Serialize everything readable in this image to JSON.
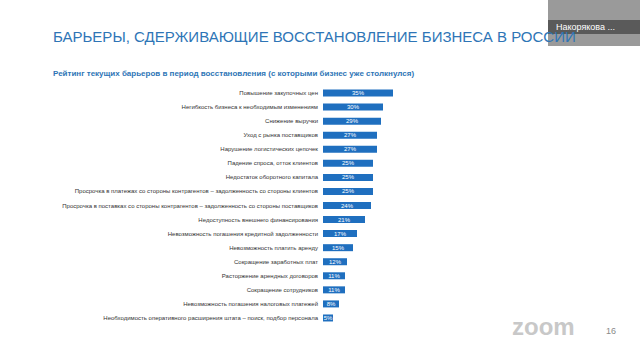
{
  "chart_data": {
    "type": "bar",
    "orientation": "horizontal",
    "title": "БАРЬЕРЫ, СДЕРЖИВАЮЩИЕ ВОССТАНОВЛЕНИЕ БИЗНЕСА В РОССИИ",
    "subtitle": "Рейтинг текущих барьеров в период восстановления (с которыми бизнес уже столкнулся)",
    "categories": [
      "Повышение закупочных цен",
      "Негибкость бизнеса к необходимым изменениям",
      "Снижение выручки",
      "Уход с рынка поставщиков",
      "Нарушение логистических цепочек",
      "Падение спроса, отток клиентов",
      "Недостаток оборотного капитала",
      "Просрочка в платежах со стороны контрагентов – задолженность со стороны клиентов",
      "Просрочка в поставках со стороны контрагентов – задолженность со стороны поставщиков",
      "Недоступность внешнего финансирования",
      "Невозможность погашения кредитной задолженности",
      "Невозможность платить аренду",
      "Сокращение заработных плат",
      "Расторжение арендных договоров",
      "Сокращение сотрудников",
      "Невозможность погашения налоговых платежей",
      "Необходимость оперативного расширения штата – поиск, подбор персонала"
    ],
    "values": [
      35,
      30,
      29,
      27,
      27,
      25,
      25,
      25,
      24,
      21,
      17,
      15,
      12,
      11,
      11,
      8,
      5
    ],
    "value_labels": [
      "35%",
      "30%",
      "29%",
      "27%",
      "27%",
      "25%",
      "25%",
      "25%",
      "24%",
      "21%",
      "17%",
      "15%",
      "12%",
      "11%",
      "11%",
      "8%",
      "5%"
    ],
    "data_labels": true,
    "color": "#1f6fbf",
    "xlim": [
      0,
      100
    ],
    "xticks": [
      0,
      100
    ],
    "tick_labels": false,
    "grid": false,
    "annotations": [
      "Накорякова ...",
      "zoom",
      "16"
    ]
  }
}
